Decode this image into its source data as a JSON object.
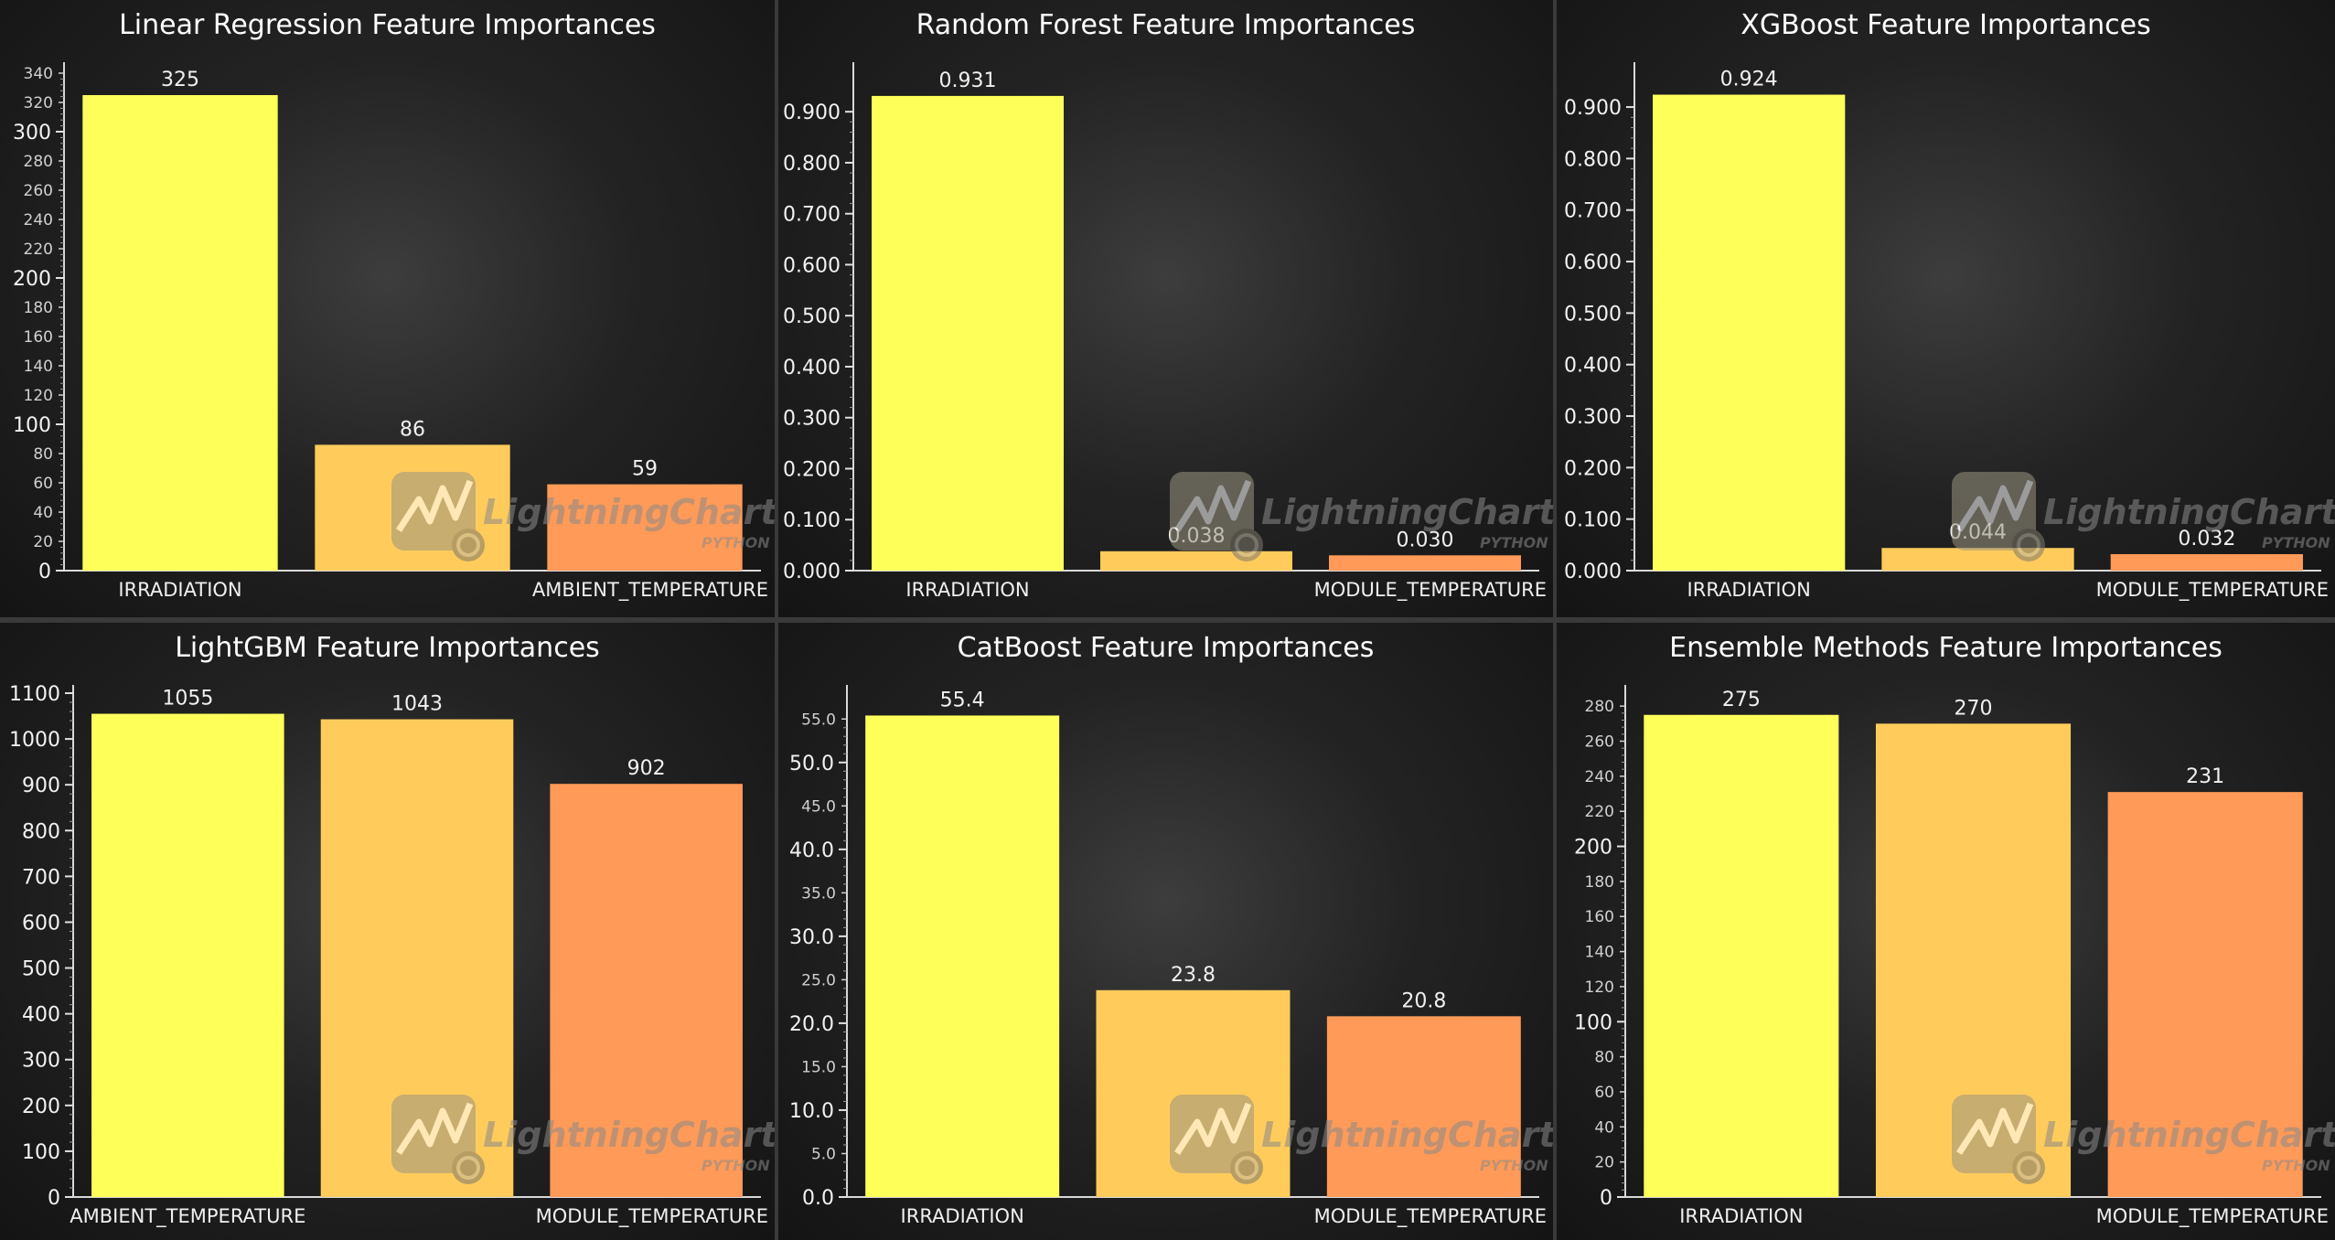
{
  "watermark": {
    "brand": "LightningChart®",
    "sub": "PYTHON"
  },
  "chart_data": [
    {
      "type": "bar",
      "title": "Linear Regression Feature Importances",
      "categories": [
        "IRRADIATION",
        "",
        "AMBIENT_TEMPERATURE"
      ],
      "values": [
        325,
        86,
        59
      ],
      "value_labels": [
        "325",
        "86",
        "59"
      ],
      "colors": [
        "#ffff5a",
        "#ffcc5c",
        "#ff9a58"
      ],
      "ylim": [
        0,
        345
      ],
      "major_ticks": [
        0,
        100,
        200,
        300
      ],
      "minor_ticks": [
        20,
        40,
        60,
        80,
        120,
        140,
        160,
        180,
        220,
        240,
        260,
        280,
        320,
        340
      ],
      "decimals": 0
    },
    {
      "type": "bar",
      "title": "Random Forest Feature Importances",
      "categories": [
        "IRRADIATION",
        "",
        "MODULE_TEMPERATURE"
      ],
      "values": [
        0.931,
        0.038,
        0.03
      ],
      "value_labels": [
        "0.931",
        "0.038",
        "0.030"
      ],
      "colors": [
        "#ffff5a",
        "#ffcc5c",
        "#ff9a58"
      ],
      "ylim": [
        0,
        0.99
      ],
      "major_ticks": [
        0,
        0.1,
        0.2,
        0.3,
        0.4,
        0.5,
        0.6,
        0.7,
        0.8,
        0.9
      ],
      "minor_ticks": [],
      "decimals": 3
    },
    {
      "type": "bar",
      "title": "XGBoost Feature Importances",
      "categories": [
        "IRRADIATION",
        "",
        "MODULE_TEMPERATURE"
      ],
      "values": [
        0.924,
        0.044,
        0.032
      ],
      "value_labels": [
        "0.924",
        "0.044",
        "0.032"
      ],
      "colors": [
        "#ffff5a",
        "#ffcc5c",
        "#ff9a58"
      ],
      "ylim": [
        0,
        0.98
      ],
      "major_ticks": [
        0,
        0.1,
        0.2,
        0.3,
        0.4,
        0.5,
        0.6,
        0.7,
        0.8,
        0.9
      ],
      "minor_ticks": [],
      "decimals": 3
    },
    {
      "type": "bar",
      "title": "LightGBM Feature Importances",
      "categories": [
        "AMBIENT_TEMPERATURE",
        "",
        "MODULE_TEMPERATURE"
      ],
      "values": [
        1055,
        1043,
        902
      ],
      "value_labels": [
        "1055",
        "1043",
        "902"
      ],
      "colors": [
        "#ffff5a",
        "#ffcc5c",
        "#ff9a58"
      ],
      "ylim": [
        0,
        1110
      ],
      "major_ticks": [
        0,
        100,
        200,
        300,
        400,
        500,
        600,
        700,
        800,
        900,
        1000,
        1100
      ],
      "minor_ticks": [],
      "decimals": 0
    },
    {
      "type": "bar",
      "title": "CatBoost Feature Importances",
      "categories": [
        "IRRADIATION",
        "",
        "MODULE_TEMPERATURE"
      ],
      "values": [
        55.4,
        23.8,
        20.8
      ],
      "value_labels": [
        "55.4",
        "23.8",
        "20.8"
      ],
      "colors": [
        "#ffff5a",
        "#ffcc5c",
        "#ff9a58"
      ],
      "ylim": [
        0,
        58.5
      ],
      "major_ticks": [
        0,
        10,
        20,
        30,
        40,
        50
      ],
      "minor_ticks": [
        5,
        15,
        25,
        35,
        45,
        55
      ],
      "decimals": 1
    },
    {
      "type": "bar",
      "title": "Ensemble Methods Feature Importances",
      "categories": [
        "IRRADIATION",
        "",
        "MODULE_TEMPERATURE"
      ],
      "values": [
        275,
        270,
        231
      ],
      "value_labels": [
        "275",
        "270",
        "231"
      ],
      "colors": [
        "#ffff5a",
        "#ffcc5c",
        "#ff9a58"
      ],
      "ylim": [
        0,
        290
      ],
      "major_ticks": [
        0,
        100,
        200
      ],
      "minor_ticks": [
        20,
        40,
        60,
        80,
        120,
        140,
        160,
        180,
        220,
        240,
        260,
        280
      ],
      "decimals": 0
    }
  ]
}
